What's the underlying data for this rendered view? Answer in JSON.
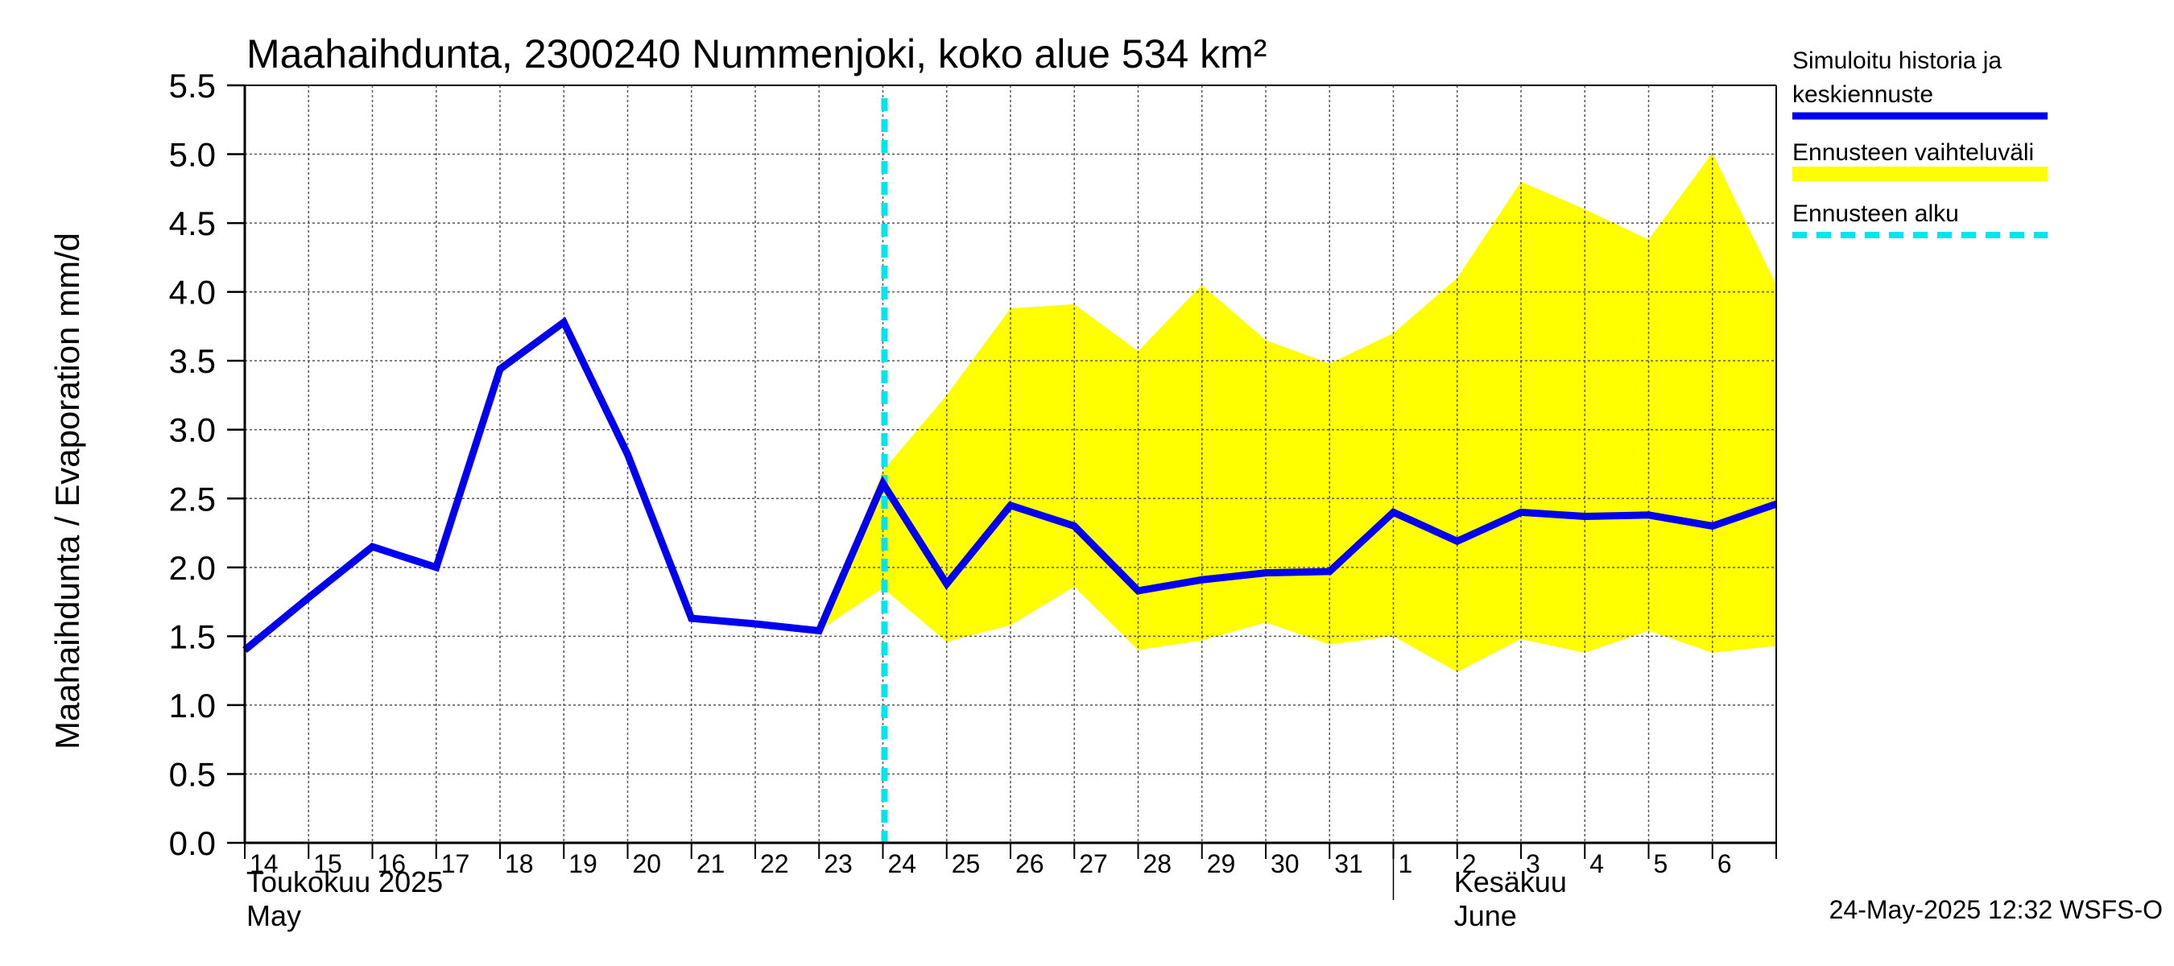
{
  "chart_data": {
    "type": "line",
    "title": "Maahaihdunta, 2300240 Nummenjoki, koko alue 534 km²",
    "ylabel": "Maahaihdunta / Evaporation   mm/d",
    "ylim": [
      0,
      5.5
    ],
    "yticks": [
      "0.0",
      "0.5",
      "1.0",
      "1.5",
      "2.0",
      "2.5",
      "3.0",
      "3.5",
      "4.0",
      "4.5",
      "5.0",
      "5.5"
    ],
    "x": [
      "2025-05-14",
      "2025-05-15",
      "2025-05-16",
      "2025-05-17",
      "2025-05-18",
      "2025-05-19",
      "2025-05-20",
      "2025-05-21",
      "2025-05-22",
      "2025-05-23",
      "2025-05-24",
      "2025-05-25",
      "2025-05-26",
      "2025-05-27",
      "2025-05-28",
      "2025-05-29",
      "2025-05-30",
      "2025-05-31",
      "2025-06-01",
      "2025-06-02",
      "2025-06-03",
      "2025-06-04",
      "2025-06-05",
      "2025-06-06",
      "2025-06-07"
    ],
    "xtick_labels": [
      "14",
      "15",
      "16",
      "17",
      "18",
      "19",
      "20",
      "21",
      "22",
      "23",
      "24",
      "25",
      "26",
      "27",
      "28",
      "29",
      "30",
      "31",
      "1",
      "2",
      "3",
      "4",
      "5",
      "6"
    ],
    "months": [
      {
        "line1": "Toukokuu  2025",
        "line2": "May"
      },
      {
        "line1": "Kesäkuu",
        "line2": "June"
      }
    ],
    "series": [
      {
        "name": "Simuloitu historia ja keskiennuste",
        "color": "#0000ee",
        "x": [
          "2025-05-14",
          "2025-05-15",
          "2025-05-16",
          "2025-05-17",
          "2025-05-18",
          "2025-05-19",
          "2025-05-20",
          "2025-05-21",
          "2025-05-22",
          "2025-05-23",
          "2025-05-24",
          "2025-05-25",
          "2025-05-26",
          "2025-05-27",
          "2025-05-28",
          "2025-05-29",
          "2025-05-30",
          "2025-05-31",
          "2025-06-01",
          "2025-06-02",
          "2025-06-03",
          "2025-06-04",
          "2025-06-05",
          "2025-06-06",
          "2025-06-07"
        ],
        "values": [
          1.4,
          1.78,
          2.15,
          2.0,
          3.44,
          3.78,
          2.82,
          1.63,
          1.59,
          1.54,
          2.61,
          1.88,
          2.45,
          2.3,
          1.83,
          1.91,
          1.96,
          1.97,
          2.4,
          2.19,
          2.4,
          2.37,
          2.38,
          2.3,
          2.46
        ]
      },
      {
        "name": "Ennusteen vaihteluväli",
        "type": "band",
        "color": "#ffff00",
        "x": [
          "2025-05-23",
          "2025-05-24",
          "2025-05-25",
          "2025-05-26",
          "2025-05-27",
          "2025-05-28",
          "2025-05-29",
          "2025-05-30",
          "2025-05-31",
          "2025-06-01",
          "2025-06-02",
          "2025-06-03",
          "2025-06-04",
          "2025-06-05",
          "2025-06-06",
          "2025-06-07"
        ],
        "lower": [
          1.54,
          1.85,
          1.46,
          1.58,
          1.86,
          1.4,
          1.47,
          1.6,
          1.44,
          1.5,
          1.24,
          1.48,
          1.38,
          1.54,
          1.38,
          1.43
        ],
        "upper": [
          1.54,
          2.7,
          3.25,
          3.88,
          3.91,
          3.57,
          4.05,
          3.65,
          3.48,
          3.7,
          4.1,
          4.8,
          4.6,
          4.38,
          5.01,
          4.05
        ]
      },
      {
        "name": "Ennusteen alku",
        "type": "vline",
        "color": "#00e5ee",
        "x": "2025-05-24"
      }
    ],
    "legend_position": "right",
    "grid": true,
    "footer": "24-May-2025 12:32 WSFS-O"
  }
}
